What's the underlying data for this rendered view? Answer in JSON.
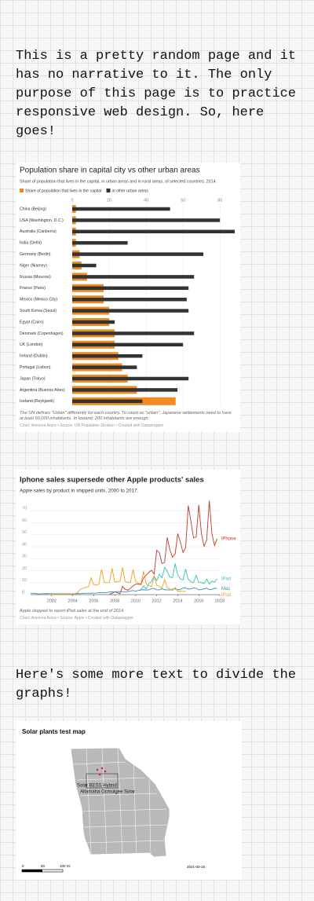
{
  "paragraphs": [
    "This is a pretty random page and it has no narrative to it. The only purpose of this page is to practice responsive web design. So, here goes!",
    "Here's some more text to divide the graphs!"
  ],
  "chart_data": [
    {
      "type": "bar",
      "orientation": "horizontal",
      "title": "Population share in capital city vs other urban areas",
      "subtitle": "Share of population that lives in the capital, in urban areas and in rural areas, of selected countries, 2014.",
      "categories": [
        "China (Beijing)",
        "USA (Washington, D.C.)",
        "Australia (Canberra)",
        "India (Delhi)",
        "Germany (Berlin)",
        "Niger (Niamey)",
        "Russia (Moscow)",
        "France (Paris)",
        "Mexico (Mexico City)",
        "South Korea (Seoul)",
        "Egypt (Cairo)",
        "Denmark (Copenhagen)",
        "UK (London)",
        "Ireland (Dublin)",
        "Portugal (Lisbon)",
        "Japan (Tokyo)",
        "Argentina (Buenos Aires)",
        "Iceland (Reykjavik)"
      ],
      "series": [
        {
          "name": "Share of population that lives in the capital",
          "color": "#f28a1f",
          "values": [
            2,
            2,
            2,
            2,
            4,
            5,
            8,
            17,
            17,
            20,
            20,
            23,
            23,
            25,
            27,
            30,
            35,
            56
          ]
        },
        {
          "name": "in other urban areas",
          "color": "#333333",
          "values": [
            53,
            80,
            88,
            30,
            71,
            13,
            66,
            63,
            62,
            63,
            23,
            66,
            60,
            38,
            35,
            63,
            57,
            38
          ]
        }
      ],
      "xlim": [
        0,
        88
      ],
      "xticks": [
        0,
        20,
        40,
        60,
        80
      ],
      "grid": true,
      "note": "The UN defines \"Urban\" differently for each country. To count as \"urban\", Japanese settlements need to have at least 50,000 inhabitants. In Iceland, 200 inhabitants are enough.",
      "source": "Chart: Ameena Arora • Source: UN Population Division • Created with Datawrapper"
    },
    {
      "type": "line",
      "title": "Iphone sales supersede other Apple products' sales",
      "subtitle": "Apple sales by product in shipped units, 2000 to 2017.",
      "x": [
        2000,
        2000.25,
        2000.5,
        2000.75,
        2001,
        2001.25,
        2001.5,
        2001.75,
        2002,
        2002.25,
        2002.5,
        2002.75,
        2003,
        2003.25,
        2003.5,
        2003.75,
        2004,
        2004.25,
        2004.5,
        2004.75,
        2005,
        2005.25,
        2005.5,
        2005.75,
        2006,
        2006.25,
        2006.5,
        2006.75,
        2007,
        2007.25,
        2007.5,
        2007.75,
        2008,
        2008.25,
        2008.5,
        2008.75,
        2009,
        2009.25,
        2009.5,
        2009.75,
        2010,
        2010.25,
        2010.5,
        2010.75,
        2011,
        2011.25,
        2011.5,
        2011.75,
        2012,
        2012.25,
        2012.5,
        2012.75,
        2013,
        2013.25,
        2013.5,
        2013.75,
        2014,
        2014.25,
        2014.5,
        2014.75,
        2015,
        2015.25,
        2015.5,
        2015.75,
        2016,
        2016.25,
        2016.5,
        2016.75,
        2017,
        2017.25,
        2017.5,
        2017.75
      ],
      "series": [
        {
          "name": "iPhone",
          "color": "#c0392b",
          "values": [
            null,
            null,
            null,
            null,
            null,
            null,
            null,
            null,
            null,
            null,
            null,
            null,
            null,
            null,
            null,
            null,
            null,
            null,
            null,
            null,
            null,
            null,
            null,
            null,
            null,
            null,
            null,
            null,
            null,
            null,
            0.3,
            1.1,
            2.3,
            1.7,
            0.7,
            6.9,
            4.4,
            3.8,
            5.2,
            7.4,
            8.7,
            8.8,
            8.4,
            14.1,
            16.2,
            18.6,
            20.3,
            17.1,
            37.0,
            35.1,
            26.0,
            26.9,
            47.8,
            37.4,
            31.2,
            33.8,
            51.0,
            43.7,
            35.2,
            39.3,
            74.5,
            61.2,
            47.5,
            48.0,
            74.8,
            51.2,
            40.4,
            45.5,
            78.3,
            50.8,
            41.0,
            46.7
          ]
        },
        {
          "name": "iPad",
          "color": "#2ec4b6",
          "values": [
            null,
            null,
            null,
            null,
            null,
            null,
            null,
            null,
            null,
            null,
            null,
            null,
            null,
            null,
            null,
            null,
            null,
            null,
            null,
            null,
            null,
            null,
            null,
            null,
            null,
            null,
            null,
            null,
            null,
            null,
            null,
            null,
            null,
            null,
            null,
            null,
            null,
            null,
            null,
            null,
            null,
            3.3,
            4.2,
            7.3,
            4.7,
            9.2,
            11.1,
            15.4,
            11.8,
            17.0,
            14.0,
            22.9,
            19.5,
            14.6,
            14.1,
            26.0,
            16.4,
            13.3,
            12.3,
            21.4,
            12.6,
            10.9,
            9.9,
            16.1,
            10.3,
            9.95,
            9.3,
            13.1,
            8.9,
            11.4,
            10.3,
            13.2
          ]
        },
        {
          "name": "Mac",
          "color": "#3a8fb7",
          "values": [
            1.1,
            1.2,
            0.9,
            0.6,
            0.7,
            0.8,
            0.9,
            0.8,
            0.8,
            0.7,
            0.7,
            0.7,
            0.8,
            0.7,
            0.7,
            0.8,
            0.8,
            0.7,
            0.9,
            0.8,
            1.0,
            1.1,
            1.2,
            1.2,
            1.3,
            1.3,
            1.6,
            1.6,
            1.5,
            1.8,
            2.2,
            2.3,
            2.3,
            2.5,
            2.6,
            2.5,
            2.2,
            2.6,
            3.1,
            3.4,
            2.9,
            3.5,
            3.9,
            4.1,
            3.8,
            4.0,
            4.9,
            5.2,
            4.0,
            4.0,
            4.9,
            4.1,
            4.0,
            3.8,
            4.6,
            4.8,
            4.1,
            4.4,
            5.5,
            5.5,
            4.6,
            4.8,
            5.7,
            5.3,
            4.0,
            4.3,
            4.9,
            5.4,
            4.2,
            4.3,
            5.4,
            5.1
          ]
        },
        {
          "name": "iPod",
          "color": "#f0a020",
          "values": [
            null,
            null,
            null,
            null,
            null,
            null,
            null,
            0.1,
            0.1,
            0.1,
            0.1,
            0.2,
            0.1,
            0.3,
            0.3,
            0.7,
            0.8,
            0.9,
            2.0,
            4.6,
            5.3,
            6.2,
            6.5,
            14.0,
            8.5,
            8.1,
            8.7,
            21.1,
            10.5,
            9.8,
            10.2,
            22.1,
            10.6,
            11.0,
            11.0,
            22.7,
            11.0,
            10.2,
            10.2,
            21.0,
            10.9,
            9.4,
            9.1,
            19.5,
            9.0,
            7.5,
            6.6,
            15.4,
            7.7,
            6.8,
            5.3,
            12.7,
            5.6,
            4.6,
            3.5,
            6.0,
            2.8,
            2.9,
            2.6,
            3.0,
            null,
            null,
            null,
            null,
            null,
            null,
            null,
            null,
            null,
            null,
            null,
            null
          ]
        }
      ],
      "xlim": [
        2000,
        2018
      ],
      "xticks": [
        2002,
        2004,
        2006,
        2008,
        2010,
        2012,
        2014,
        2016,
        2018
      ],
      "ylim": [
        0,
        80
      ],
      "yticks": [
        0,
        10,
        20,
        30,
        40,
        50,
        60,
        70
      ],
      "grid": true,
      "note": "Apple stopped to report iPod sales at the end of 2014.",
      "source": "Chart: Ameena Arora • Source: Apple • Created with Datawrapper"
    }
  ],
  "map": {
    "title": "Solar plants test map",
    "labels": [
      "Solar BESS Hybrid",
      "Altamaha Ocmulgee Solar"
    ],
    "scale_labels": [
      "0",
      "50",
      "100 mi"
    ],
    "date": "2021-03-15"
  }
}
